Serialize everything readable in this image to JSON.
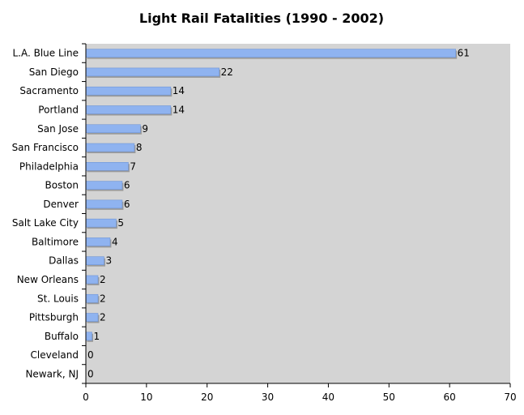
{
  "chart_data": {
    "type": "bar",
    "orientation": "horizontal",
    "title": "Light Rail Fatalities (1990 - 2002)",
    "xlabel": "",
    "ylabel": "",
    "categories": [
      "L.A. Blue Line",
      "San Diego",
      "Sacramento",
      "Portland",
      "San Jose",
      "San Francisco",
      "Philadelphia",
      "Boston",
      "Denver",
      "Salt Lake City",
      "Baltimore",
      "Dallas",
      "New Orleans",
      "St. Louis",
      "Pittsburgh",
      "Buffalo",
      "Cleveland",
      "Newark, NJ"
    ],
    "values": [
      61,
      22,
      14,
      14,
      9,
      8,
      7,
      6,
      6,
      5,
      4,
      3,
      2,
      2,
      2,
      1,
      0,
      0
    ],
    "xlim": [
      0,
      70
    ],
    "xticks": [
      0,
      10,
      20,
      30,
      40,
      50,
      60,
      70
    ],
    "grid": false,
    "legend": "none",
    "colors": {
      "bar": "#8fb3f0",
      "bar_edge": "#6f95d6",
      "plot_bg": "#d4d4d4",
      "axis": "#000000"
    }
  }
}
